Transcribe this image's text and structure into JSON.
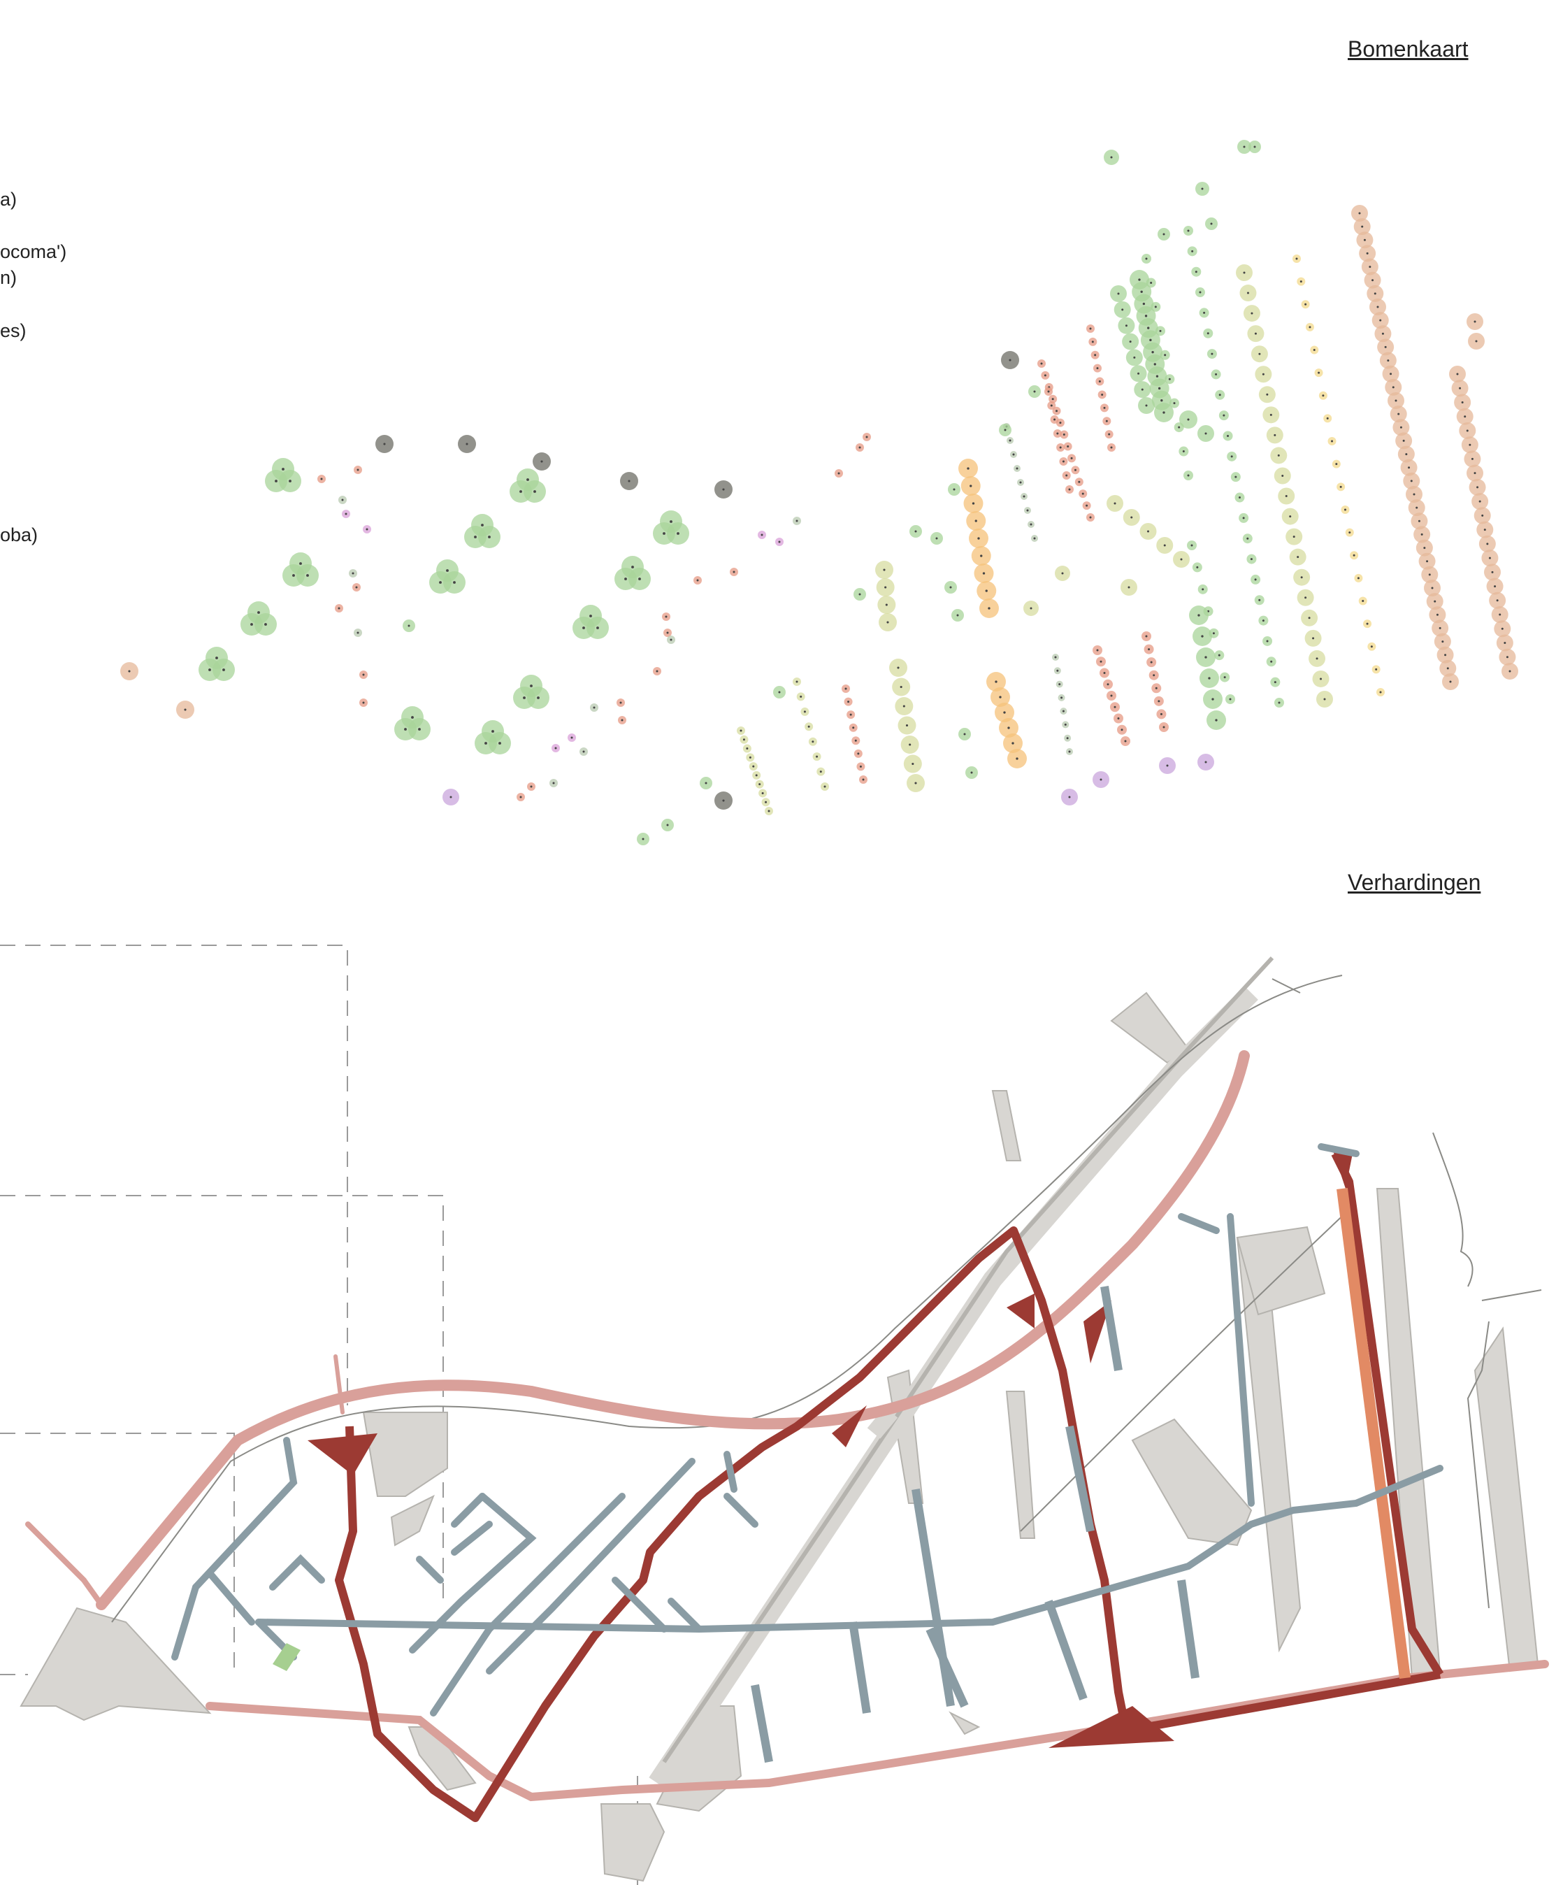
{
  "titles": {
    "tree_map": "Bomenkaart",
    "paving_map": "Verhardingen"
  },
  "legend_fragments": [
    "a)",
    "ocoma')",
    "n)",
    "es)",
    "oba)"
  ],
  "colors": {
    "tree_green": "#a8d49a",
    "tree_dark": "#6e6e66",
    "tree_red": "#e69a84",
    "tree_pink": "#d9a0d8",
    "tree_yellow": "#f3d98c",
    "tree_orange": "#f5c27a",
    "tree_olive": "#d7dca0",
    "tree_tan": "#e6b89a",
    "tree_purple": "#c9a6dc",
    "road_main": "#9c3a33",
    "path_blue": "#8a9ca4",
    "edge_pink": "#d9a09a",
    "accent_orange": "#e28a64",
    "pavement_grey": "#d8d6d2",
    "lawn_green": "#a6cf90",
    "dashed": "#9a9a9a"
  },
  "icons": {
    "tree_symbol": "circle-with-center-dot",
    "tree_cluster": "triple-circle"
  }
}
